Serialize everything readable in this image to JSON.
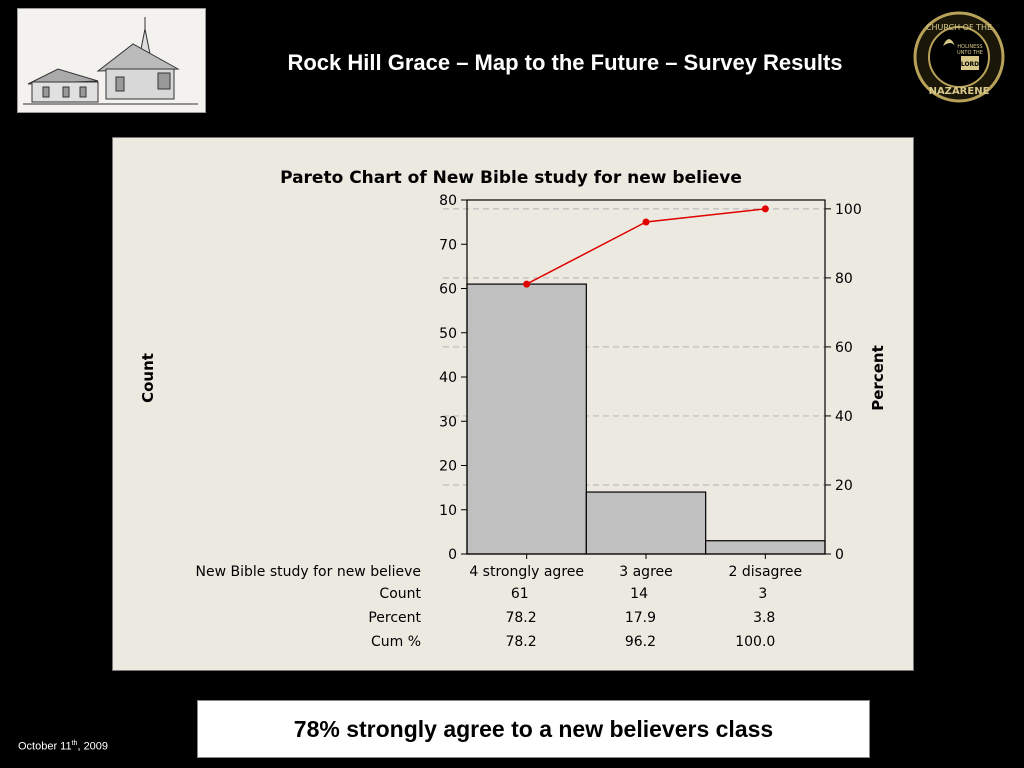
{
  "slide": {
    "title": "Rock Hill Grace – Map to the Future – Survey Results",
    "callout": "78% strongly agree to a new believers class",
    "date_main": "October 11",
    "date_sup": "th",
    "date_year": ", 2009"
  },
  "logo_right": {
    "ring_text_top": "CHURCH OF THE",
    "ring_text_bottom": "NAZARENE",
    "book_text_1": "HOLINESS",
    "book_text_2": "UNTO THE",
    "book_text_3": "LORD"
  },
  "chart_data": {
    "type": "bar",
    "title": "Pareto Chart of New Bible study for new believe",
    "ylabel": "Count",
    "y2label": "Percent",
    "categories": [
      "4 strongly agree",
      "3 agree",
      "2 disagree"
    ],
    "values": [
      61,
      14,
      3
    ],
    "percent": [
      78.2,
      17.9,
      3.8
    ],
    "cum_percent": [
      78.2,
      96.2,
      100.0
    ],
    "ylim": [
      0,
      80
    ],
    "yticks": [
      0,
      10,
      20,
      30,
      40,
      50,
      60,
      70,
      80
    ],
    "y2lim": [
      0,
      100
    ],
    "y2ticks": [
      0,
      20,
      40,
      60,
      80,
      100
    ],
    "grid": "dashed horizontal at secondary ticks",
    "colors": {
      "bar": "#c0c0c0",
      "line": "#e00000"
    },
    "table": {
      "row_header": "New Bible study for new believe",
      "row_labels": [
        "Count",
        "Percent",
        "Cum %"
      ],
      "count": [
        "61",
        "14",
        "3"
      ],
      "percent": [
        "78.2",
        "17.9",
        "3.8"
      ],
      "cum": [
        "78.2",
        "96.2",
        "100.0"
      ]
    }
  }
}
